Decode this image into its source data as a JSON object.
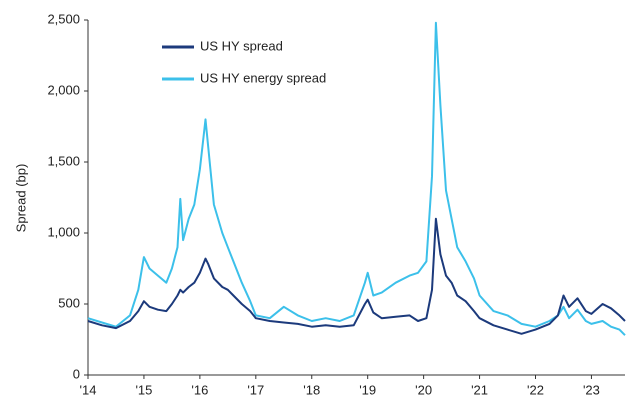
{
  "chart_data": {
    "type": "line",
    "y_label": "Spread (bp)",
    "x": [
      2014.0,
      2014.25,
      2014.5,
      2014.75,
      2014.9,
      2015.0,
      2015.1,
      2015.25,
      2015.4,
      2015.5,
      2015.6,
      2015.65,
      2015.7,
      2015.8,
      2015.9,
      2016.0,
      2016.1,
      2016.15,
      2016.25,
      2016.4,
      2016.5,
      2016.6,
      2016.75,
      2016.9,
      2017.0,
      2017.25,
      2017.5,
      2017.75,
      2018.0,
      2018.25,
      2018.5,
      2018.75,
      2018.95,
      2019.0,
      2019.1,
      2019.25,
      2019.5,
      2019.75,
      2019.9,
      2020.05,
      2020.15,
      2020.22,
      2020.3,
      2020.4,
      2020.5,
      2020.6,
      2020.75,
      2020.9,
      2021.0,
      2021.25,
      2021.5,
      2021.75,
      2022.0,
      2022.25,
      2022.4,
      2022.5,
      2022.6,
      2022.75,
      2022.9,
      2023.0,
      2023.2,
      2023.35,
      2023.5,
      2023.6
    ],
    "series": [
      {
        "name": "US HY spread",
        "color": "#1c3a7c",
        "values": [
          380,
          350,
          330,
          380,
          450,
          520,
          480,
          460,
          450,
          500,
          560,
          600,
          580,
          620,
          650,
          720,
          820,
          780,
          680,
          620,
          600,
          560,
          500,
          450,
          400,
          380,
          370,
          360,
          340,
          350,
          340,
          350,
          500,
          530,
          440,
          400,
          410,
          420,
          380,
          400,
          600,
          1100,
          850,
          700,
          650,
          560,
          520,
          450,
          400,
          350,
          320,
          290,
          320,
          360,
          420,
          560,
          480,
          540,
          450,
          430,
          500,
          470,
          420,
          380
        ]
      },
      {
        "name": "US HY energy spread",
        "color": "#3cc0ea",
        "values": [
          400,
          370,
          340,
          420,
          600,
          830,
          750,
          700,
          650,
          750,
          900,
          1240,
          950,
          1100,
          1200,
          1450,
          1800,
          1600,
          1200,
          1000,
          900,
          800,
          650,
          520,
          420,
          400,
          480,
          420,
          380,
          400,
          380,
          420,
          650,
          720,
          560,
          580,
          650,
          700,
          720,
          800,
          1400,
          2480,
          1900,
          1300,
          1100,
          900,
          800,
          680,
          560,
          450,
          420,
          360,
          340,
          380,
          420,
          480,
          400,
          460,
          380,
          360,
          380,
          340,
          320,
          280
        ]
      }
    ],
    "xlim": [
      2014,
      2023.6
    ],
    "xticks": [
      {
        "value": 2014,
        "label": "'14"
      },
      {
        "value": 2015,
        "label": "'15"
      },
      {
        "value": 2016,
        "label": "'16"
      },
      {
        "value": 2017,
        "label": "'17"
      },
      {
        "value": 2018,
        "label": "'18"
      },
      {
        "value": 2019,
        "label": "'19"
      },
      {
        "value": 2020,
        "label": "'20"
      },
      {
        "value": 2021,
        "label": "'21"
      },
      {
        "value": 2022,
        "label": "'22"
      },
      {
        "value": 2023,
        "label": "'23"
      }
    ],
    "ylim": [
      0,
      2500
    ],
    "yticks": [
      0,
      500,
      {
        "value": 1000,
        "label": "1,000"
      },
      {
        "value": 1500,
        "label": "1,500"
      },
      {
        "value": 2000,
        "label": "2,000"
      },
      {
        "value": 2500,
        "label": "2,500"
      }
    ],
    "grid": false,
    "legend": "upper left"
  }
}
